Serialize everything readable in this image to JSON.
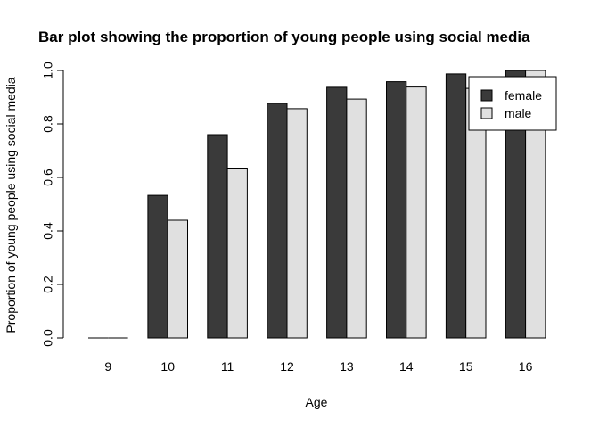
{
  "chart_data": {
    "type": "bar",
    "title": "Bar plot showing the proportion of young people using social media",
    "xlabel": "Age",
    "ylabel": "Proportion of young people using social media",
    "categories": [
      "9",
      "10",
      "11",
      "12",
      "13",
      "14",
      "15",
      "16"
    ],
    "series": [
      {
        "name": "female",
        "color": "#3a3a3a",
        "values": [
          0.0,
          0.533,
          0.76,
          0.877,
          0.937,
          0.958,
          0.987,
          1.0
        ]
      },
      {
        "name": "male",
        "color": "#e0e0e0",
        "values": [
          0.0,
          0.44,
          0.635,
          0.857,
          0.893,
          0.938,
          0.933,
          1.0
        ]
      }
    ],
    "ylim": [
      0,
      1
    ],
    "yticks": [
      0.0,
      0.2,
      0.4,
      0.6,
      0.8,
      1.0
    ],
    "ytick_labels": [
      "0.0",
      "0.2",
      "0.4",
      "0.6",
      "0.8",
      "1.0"
    ],
    "legend": {
      "position": "top-right",
      "entries": [
        "female",
        "male"
      ]
    },
    "grid": false
  }
}
